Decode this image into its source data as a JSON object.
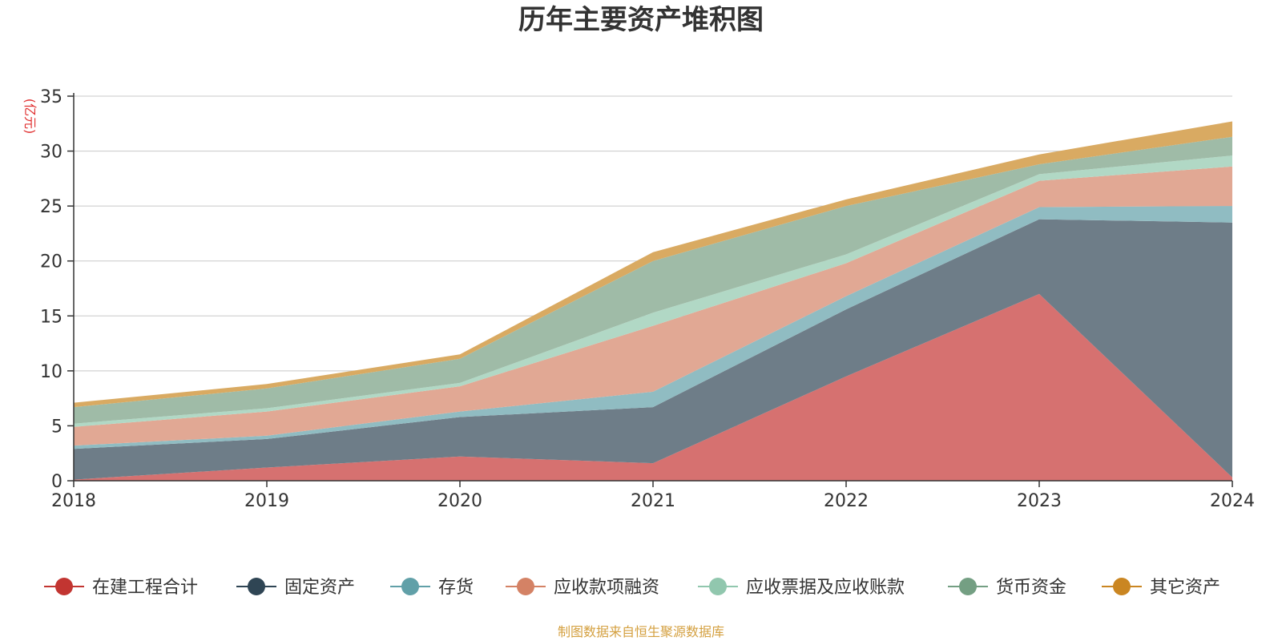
{
  "chart_data": {
    "type": "area",
    "stacked": true,
    "title": "历年主要资产堆积图",
    "ylabel": "(亿元)",
    "source": "制图数据来自恒生聚源数据库",
    "categories": [
      "2018",
      "2019",
      "2020",
      "2021",
      "2022",
      "2023",
      "2024"
    ],
    "ylim": [
      0,
      35
    ],
    "yticks": [
      0,
      5,
      10,
      15,
      20,
      25,
      30,
      35
    ],
    "grid": true,
    "legend_position": "bottom",
    "series": [
      {
        "name": "在建工程合计",
        "color": "#c23531",
        "area_color": "#d67170",
        "values": [
          0.1,
          1.2,
          2.2,
          1.6,
          9.5,
          17.0,
          0.3
        ]
      },
      {
        "name": "固定资产",
        "color": "#2f4554",
        "area_color": "#6e7d88",
        "values": [
          2.8,
          2.6,
          3.6,
          5.1,
          6.1,
          6.8,
          23.2
        ]
      },
      {
        "name": "存货",
        "color": "#61a0a8",
        "area_color": "#90bcc2",
        "values": [
          0.3,
          0.3,
          0.5,
          1.4,
          1.2,
          1.1,
          1.5
        ]
      },
      {
        "name": "应收款项融资",
        "color": "#d48265",
        "area_color": "#e1a894",
        "values": [
          1.7,
          2.2,
          2.3,
          6.0,
          3.0,
          2.4,
          3.6
        ]
      },
      {
        "name": "应收票据及应收账款",
        "color": "#91c7ae",
        "area_color": "#b1d8c5",
        "values": [
          0.3,
          0.3,
          0.3,
          1.2,
          0.8,
          0.6,
          1.0
        ]
      },
      {
        "name": "货币资金",
        "color": "#749f83",
        "area_color": "#9fbba7",
        "values": [
          1.5,
          1.8,
          2.2,
          4.7,
          4.4,
          0.9,
          1.7
        ]
      },
      {
        "name": "其它资产",
        "color": "#ca8622",
        "area_color": "#d9aa62",
        "values": [
          0.4,
          0.4,
          0.4,
          0.8,
          0.6,
          0.9,
          1.4
        ]
      }
    ]
  }
}
